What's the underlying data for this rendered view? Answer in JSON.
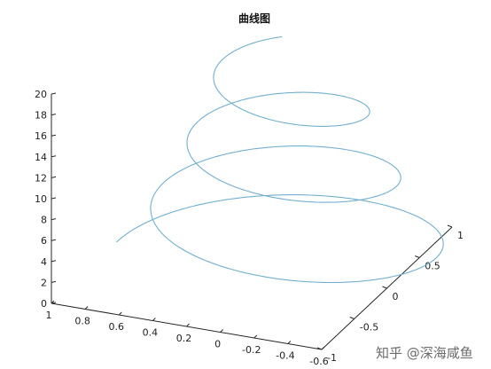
{
  "chart_data": {
    "type": "line",
    "title": "曲线图",
    "series": [
      {
        "x_expr": "exp(-t/20)*cos(t)",
        "y_expr": "exp(-t/20)*sin(t)",
        "z_expr": "t",
        "t_range": [
          0,
          20
        ]
      }
    ],
    "z_ticks": [
      "0",
      "2",
      "4",
      "6",
      "8",
      "10",
      "12",
      "14",
      "16",
      "18",
      "20"
    ],
    "x_ticks": [
      "1",
      "0.8",
      "0.6",
      "0.4",
      "0.2",
      "0",
      "-0.2",
      "-0.4",
      "-0.6"
    ],
    "y_ticks": [
      "-1",
      "-0.5",
      "0",
      "0.5",
      "1"
    ],
    "xlim": [
      -0.6,
      1.0
    ],
    "ylim": [
      -1.0,
      1.0
    ],
    "zlim": [
      0,
      20
    ],
    "line_color": "#73afd0",
    "grid": false
  },
  "watermark": "知乎 @深海咸鱼"
}
